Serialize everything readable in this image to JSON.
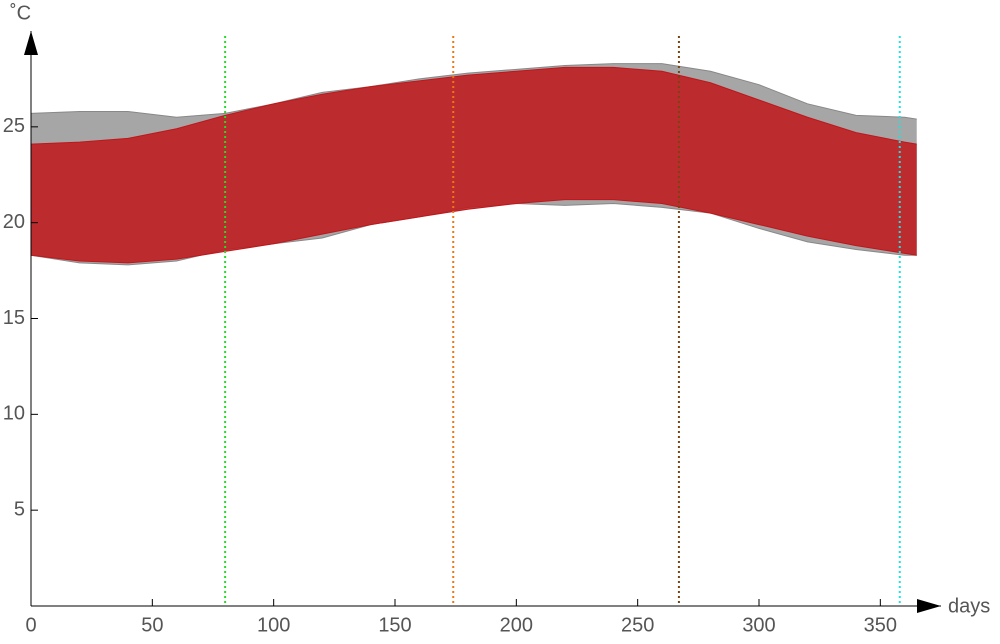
{
  "chart_data": {
    "type": "range-area",
    "x_label": "days",
    "y_label": "˚C",
    "xlim": [
      0,
      375
    ],
    "ylim": [
      0,
      30
    ],
    "xticks": [
      0,
      50,
      100,
      150,
      200,
      250,
      300,
      350
    ],
    "yticks": [
      5,
      10,
      15,
      20,
      25
    ],
    "x": [
      0,
      20,
      40,
      60,
      80,
      100,
      120,
      140,
      160,
      180,
      200,
      220,
      240,
      260,
      280,
      300,
      320,
      340,
      360,
      365
    ],
    "series": [
      {
        "color": "#888888",
        "high": [
          25.7,
          25.8,
          25.8,
          25.5,
          25.7,
          26.2,
          26.8,
          27.1,
          27.5,
          27.8,
          28.0,
          28.2,
          28.3,
          28.3,
          27.9,
          27.2,
          26.2,
          25.6,
          25.5,
          25.4
        ],
        "low": [
          18.3,
          17.9,
          17.8,
          18.0,
          18.6,
          18.9,
          19.2,
          19.9,
          20.3,
          20.8,
          21.0,
          20.9,
          21.0,
          20.8,
          20.5,
          19.7,
          19.0,
          18.6,
          18.3,
          18.3
        ]
      },
      {
        "color": "#c0161a",
        "high": [
          24.1,
          24.2,
          24.4,
          24.9,
          25.6,
          26.2,
          26.7,
          27.1,
          27.4,
          27.7,
          27.9,
          28.1,
          28.1,
          27.9,
          27.3,
          26.4,
          25.5,
          24.7,
          24.2,
          24.1
        ],
        "low": [
          18.3,
          18.0,
          17.9,
          18.1,
          18.5,
          18.9,
          19.4,
          19.9,
          20.3,
          20.7,
          21.0,
          21.2,
          21.2,
          21.0,
          20.5,
          19.9,
          19.3,
          18.8,
          18.4,
          18.3
        ]
      }
    ],
    "vlines": [
      {
        "x": 80,
        "color": "#22dd22"
      },
      {
        "x": 174,
        "color": "#ee7711"
      },
      {
        "x": 267,
        "color": "#774411"
      },
      {
        "x": 358,
        "color": "#22e0e0"
      }
    ]
  }
}
